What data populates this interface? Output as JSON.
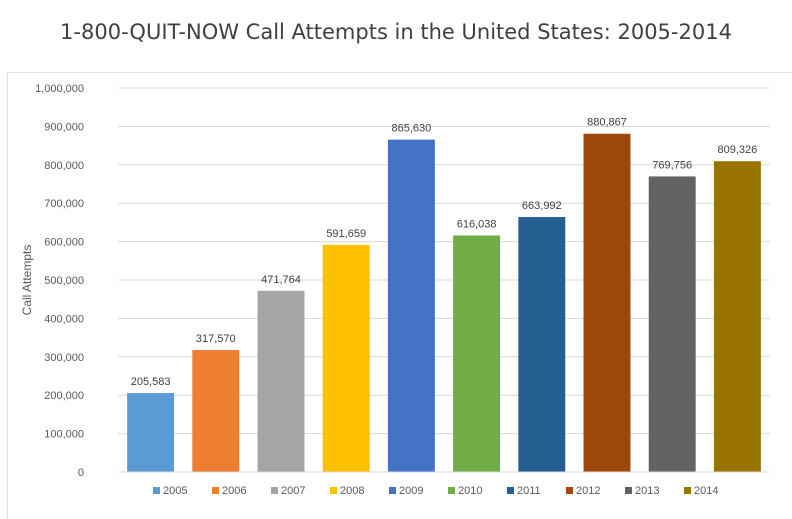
{
  "chart_data": {
    "type": "bar",
    "title": "1-800-QUIT-NOW Call Attempts in the United States: 2005-2014",
    "xlabel": "",
    "ylabel": "Call Attempts",
    "ylim": [
      0,
      1000000
    ],
    "yticks": [
      0,
      100000,
      200000,
      300000,
      400000,
      500000,
      600000,
      700000,
      800000,
      900000,
      1000000
    ],
    "ytick_labels": [
      "0",
      "100,000",
      "200,000",
      "300,000",
      "400,000",
      "500,000",
      "600,000",
      "700,000",
      "800,000",
      "900,000",
      "1,000,000"
    ],
    "grid": true,
    "legend": "bottom",
    "categories": [
      "2005",
      "2006",
      "2007",
      "2008",
      "2009",
      "2010",
      "2011",
      "2012",
      "2013",
      "2014"
    ],
    "values": [
      205583,
      317570,
      471764,
      591659,
      865630,
      616038,
      663992,
      880867,
      769756,
      809326
    ],
    "value_labels": [
      "205,583",
      "317,570",
      "471,764",
      "591,659",
      "865,630",
      "616,038",
      "663,992",
      "880,867",
      "769,756",
      "809,326"
    ],
    "colors": [
      "#5b9bd5",
      "#ed7d31",
      "#a5a5a5",
      "#ffc000",
      "#4472c4",
      "#70ad47",
      "#255e91",
      "#9e480e",
      "#636363",
      "#997300"
    ]
  }
}
